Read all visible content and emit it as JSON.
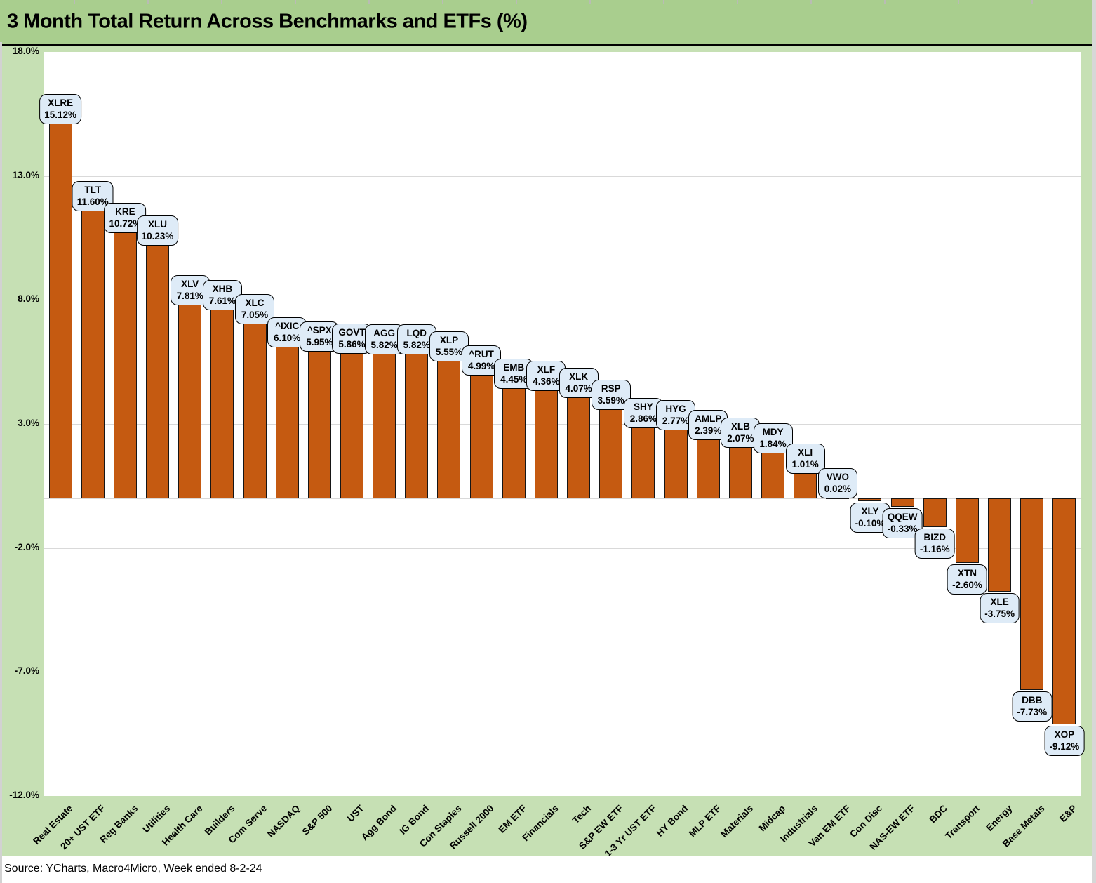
{
  "header": {
    "title": "3 Month Total Return Across Benchmarks and ETFs (%)"
  },
  "footer": {
    "source": "Source: YCharts, Macro4Micro, Week ended 8-2-24"
  },
  "colors": {
    "bar_fill": "#C55A11",
    "bar_border": "#161616",
    "label_box_fill": "#DEEBF7",
    "label_box_border": "#000000",
    "header_bg": "#A9CE8E",
    "chart_bg": "#C6E0B4",
    "plot_bg": "#FFFFFF",
    "gridline": "#D9D9D9"
  },
  "chart_data": {
    "type": "bar",
    "title": "3 Month Total Return Across Benchmarks and ETFs (%)",
    "xlabel": "",
    "ylabel": "",
    "ylim": [
      -12,
      18
    ],
    "grid": true,
    "legend": "none",
    "y_ticks": [
      {
        "value": 18,
        "label": "18.0%"
      },
      {
        "value": 13,
        "label": "13.0%"
      },
      {
        "value": 8,
        "label": "8.0%"
      },
      {
        "value": 3,
        "label": "3.0%"
      },
      {
        "value": -2,
        "label": "-2.0%"
      },
      {
        "value": -7,
        "label": "-7.0%"
      },
      {
        "value": -12,
        "label": "-12.0%"
      }
    ],
    "gridline_values": [
      13,
      8,
      3,
      0,
      -2,
      -7
    ],
    "bars": [
      {
        "category": "Real Estate",
        "ticker": "XLRE",
        "value": 15.12,
        "display": "15.12%"
      },
      {
        "category": "20+ UST ETF",
        "ticker": "TLT",
        "value": 11.6,
        "display": "11.60%"
      },
      {
        "category": "Reg Banks",
        "ticker": "KRE",
        "value": 10.72,
        "display": "10.72%"
      },
      {
        "category": "Utilities",
        "ticker": "XLU",
        "value": 10.23,
        "display": "10.23%"
      },
      {
        "category": "Health Care",
        "ticker": "XLV",
        "value": 7.81,
        "display": "7.81%"
      },
      {
        "category": "Builders",
        "ticker": "XHB",
        "value": 7.61,
        "display": "7.61%"
      },
      {
        "category": "Com Serve",
        "ticker": "XLC",
        "value": 7.05,
        "display": "7.05%"
      },
      {
        "category": "NASDAQ",
        "ticker": "^IXIC",
        "value": 6.1,
        "display": "6.10%"
      },
      {
        "category": "S&P 500",
        "ticker": "^SPX",
        "value": 5.95,
        "display": "5.95%"
      },
      {
        "category": "UST",
        "ticker": "GOVT",
        "value": 5.86,
        "display": "5.86%"
      },
      {
        "category": "Agg Bond",
        "ticker": "AGG",
        "value": 5.82,
        "display": "5.82%"
      },
      {
        "category": "IG Bond",
        "ticker": "LQD",
        "value": 5.82,
        "display": "5.82%"
      },
      {
        "category": "Con Staples",
        "ticker": "XLP",
        "value": 5.55,
        "display": "5.55%"
      },
      {
        "category": "Russell 2000",
        "ticker": "^RUT",
        "value": 4.99,
        "display": "4.99%"
      },
      {
        "category": "EM ETF",
        "ticker": "EMB",
        "value": 4.45,
        "display": "4.45%"
      },
      {
        "category": "Financials",
        "ticker": "XLF",
        "value": 4.36,
        "display": "4.36%"
      },
      {
        "category": "Tech",
        "ticker": "XLK",
        "value": 4.07,
        "display": "4.07%"
      },
      {
        "category": "S&P EW ETF",
        "ticker": "RSP",
        "value": 3.59,
        "display": "3.59%"
      },
      {
        "category": "1-3 Yr UST ETF",
        "ticker": "SHY",
        "value": 2.86,
        "display": "2.86%"
      },
      {
        "category": "HY Bond",
        "ticker": "HYG",
        "value": 2.77,
        "display": "2.77%"
      },
      {
        "category": "MLP ETF",
        "ticker": "AMLP",
        "value": 2.39,
        "display": "2.39%"
      },
      {
        "category": "Materials",
        "ticker": "XLB",
        "value": 2.07,
        "display": "2.07%"
      },
      {
        "category": "Midcap",
        "ticker": "MDY",
        "value": 1.84,
        "display": "1.84%"
      },
      {
        "category": "Industrials",
        "ticker": "XLI",
        "value": 1.01,
        "display": "1.01%"
      },
      {
        "category": "Van EM ETF",
        "ticker": "VWO",
        "value": 0.02,
        "display": "0.02%"
      },
      {
        "category": "Con Disc",
        "ticker": "XLY",
        "value": -0.1,
        "display": "-0.10%"
      },
      {
        "category": "NAS-EW ETF",
        "ticker": "QQEW",
        "value": -0.33,
        "display": "-0.33%"
      },
      {
        "category": "BDC",
        "ticker": "BIZD",
        "value": -1.16,
        "display": "-1.16%"
      },
      {
        "category": "Transport",
        "ticker": "XTN",
        "value": -2.6,
        "display": "-2.60%"
      },
      {
        "category": "Energy",
        "ticker": "XLE",
        "value": -3.75,
        "display": "-3.75%"
      },
      {
        "category": "Base Metals",
        "ticker": "DBB",
        "value": -7.73,
        "display": "-7.73%"
      },
      {
        "category": "E&P",
        "ticker": "XOP",
        "value": -9.12,
        "display": "-9.12%"
      }
    ]
  }
}
